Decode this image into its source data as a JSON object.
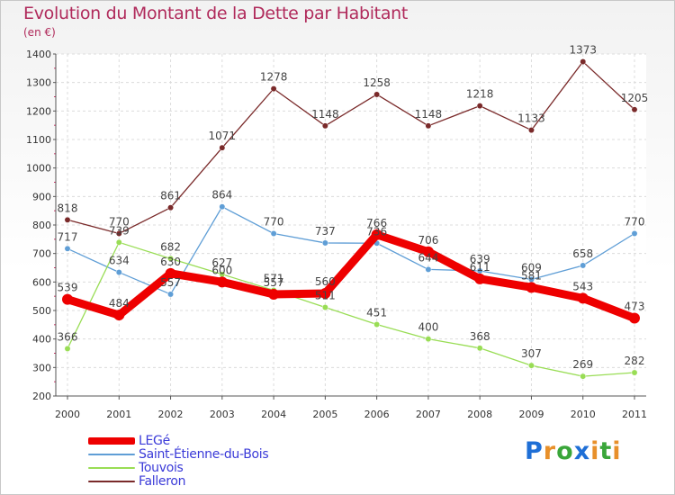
{
  "title": "Evolution du Montant de la Dette par Habitant",
  "subtitle": "(en €)",
  "logo": {
    "text": "Proxiti",
    "letters": [
      {
        "ch": "P",
        "color": "#1f6fd6"
      },
      {
        "ch": "r",
        "color": "#e8902a"
      },
      {
        "ch": "o",
        "color": "#3aa63a"
      },
      {
        "ch": "x",
        "color": "#1f6fd6"
      },
      {
        "ch": "i",
        "color": "#e8902a"
      },
      {
        "ch": "t",
        "color": "#3aa63a"
      },
      {
        "ch": "i",
        "color": "#e8902a"
      }
    ]
  },
  "chart_data": {
    "type": "line",
    "title": "Evolution du Montant de la Dette par Habitant",
    "subtitle": "(en €)",
    "xlabel": "",
    "ylabel": "",
    "ylim": [
      200,
      1400
    ],
    "yticks": [
      200,
      300,
      400,
      500,
      600,
      700,
      800,
      900,
      1000,
      1100,
      1200,
      1300,
      1400
    ],
    "categories": [
      "2000",
      "2001",
      "2002",
      "2003",
      "2004",
      "2005",
      "2006",
      "2007",
      "2008",
      "2009",
      "2010",
      "2011"
    ],
    "grid": true,
    "legend_position": "bottom-left",
    "series": [
      {
        "name": "LEGé",
        "color": "#ee0000",
        "values": [
          539,
          484,
          630,
          600,
          557,
          560,
          766,
          706,
          611,
          581,
          543,
          473
        ],
        "labels": [
          "539",
          "484",
          "630",
          "600",
          "557",
          "560",
          "766",
          "706",
          "611",
          "581",
          "543",
          "473"
        ]
      },
      {
        "name": "Saint-Étienne-du-Bois",
        "color": "#5f9ed6",
        "values": [
          717,
          634,
          557,
          864,
          770,
          737,
          736,
          644,
          639,
          609,
          658,
          770
        ],
        "labels": [
          "717",
          "634",
          "557",
          "864",
          "770",
          "737",
          "736",
          "644",
          "639",
          "609",
          "658",
          "770"
        ]
      },
      {
        "name": "Touvois",
        "color": "#99dd55",
        "values": [
          366,
          739,
          682,
          627,
          571,
          511,
          451,
          400,
          368,
          307,
          269,
          282
        ],
        "labels": [
          "366",
          "739",
          "682",
          "627",
          "571",
          "511",
          "451",
          "400",
          "368",
          "307",
          "269",
          "282"
        ]
      },
      {
        "name": "Falleron",
        "color": "#7a2a2a",
        "values": [
          818,
          770,
          861,
          1071,
          1278,
          1148,
          1258,
          1148,
          1218,
          1133,
          1373,
          1205
        ],
        "labels": [
          "818",
          "770",
          "861",
          "1071",
          "1278",
          "1148",
          "1258",
          "1148",
          "1218",
          "1133",
          "1373",
          "1205"
        ]
      }
    ]
  }
}
